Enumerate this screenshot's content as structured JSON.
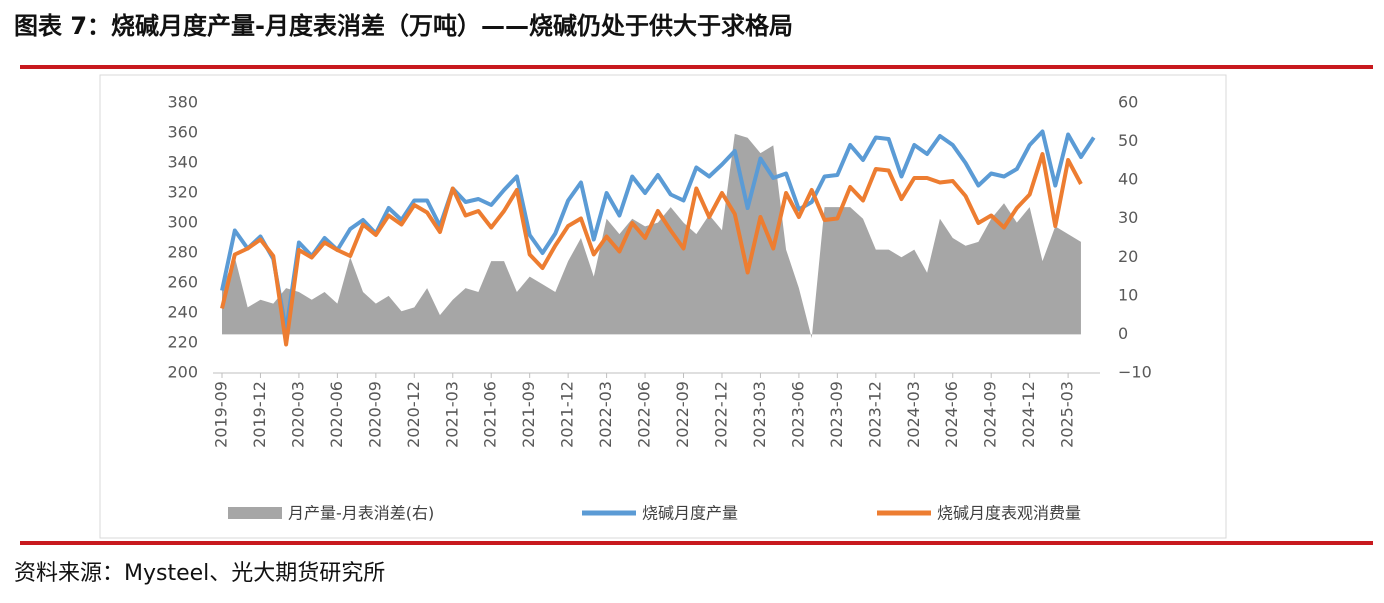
{
  "header": {
    "title": "图表 7：烧碱月度产量-月度表消差（万吨）——烧碱仍处于供大于求格局"
  },
  "chart_data": {
    "type": "combo",
    "categories": [
      "2019-09",
      null,
      null,
      "2019-12",
      null,
      null,
      "2020-03",
      null,
      null,
      "2020-06",
      null,
      null,
      "2020-09",
      null,
      null,
      "2020-12",
      null,
      null,
      "2021-03",
      null,
      null,
      "2021-06",
      null,
      null,
      "2021-09",
      null,
      null,
      "2021-12",
      null,
      null,
      "2022-03",
      null,
      null,
      "2022-06",
      null,
      null,
      "2022-09",
      null,
      null,
      "2022-12",
      null,
      null,
      "2023-03",
      null,
      null,
      "2023-06",
      null,
      null,
      "2023-09",
      null,
      null,
      "2023-12",
      null,
      null,
      "2024-03",
      null,
      null,
      "2024-06",
      null,
      null,
      "2024-09",
      null,
      null,
      "2024-12",
      null,
      null,
      "2025-03",
      null,
      null
    ],
    "series": [
      {
        "name": "月产量-月表消差(右)",
        "type": "area",
        "axis": "y2",
        "color": "#a6a6a6",
        "values": [
          12,
          20,
          7,
          9,
          8,
          12,
          11,
          9,
          11,
          8,
          20,
          11,
          8,
          10,
          6,
          7,
          12,
          5,
          9,
          12,
          11,
          19,
          19,
          11,
          15,
          13,
          11,
          19,
          25,
          15,
          30,
          26,
          30,
          28,
          29,
          33,
          29,
          26,
          31,
          27,
          52,
          51,
          47,
          49,
          22,
          12,
          -1,
          33,
          33,
          33,
          30,
          22,
          22,
          20,
          22,
          16,
          30,
          25,
          23,
          24,
          30,
          34,
          29,
          33,
          19,
          28,
          26,
          24,
          null
        ]
      },
      {
        "name": "烧碱月度产量",
        "type": "line",
        "color": "#5b9bd5",
        "values": [
          255,
          295,
          283,
          291,
          276,
          228,
          287,
          278,
          290,
          282,
          296,
          302,
          293,
          310,
          302,
          315,
          315,
          298,
          323,
          314,
          316,
          312,
          322,
          331,
          292,
          280,
          293,
          315,
          327,
          289,
          320,
          305,
          331,
          320,
          332,
          319,
          315,
          337,
          331,
          339,
          348,
          310,
          343,
          330,
          333,
          309,
          314,
          331,
          332,
          352,
          342,
          357,
          356,
          331,
          352,
          346,
          358,
          352,
          340,
          325,
          333,
          331,
          336,
          352,
          361,
          325,
          359,
          344,
          357
        ]
      },
      {
        "name": "烧碱月度表观消费量",
        "type": "line",
        "color": "#ed7d31",
        "values": [
          243,
          279,
          283,
          289,
          278,
          219,
          282,
          277,
          287,
          282,
          278,
          299,
          292,
          305,
          299,
          312,
          307,
          294,
          323,
          305,
          308,
          297,
          308,
          322,
          279,
          270,
          285,
          298,
          303,
          279,
          291,
          281,
          300,
          290,
          308,
          295,
          283,
          323,
          304,
          320,
          306,
          267,
          304,
          283,
          320,
          304,
          322,
          302,
          303,
          324,
          315,
          336,
          335,
          316,
          330,
          330,
          327,
          328,
          318,
          300,
          305,
          297,
          310,
          319,
          346,
          298,
          342,
          326,
          null
        ]
      }
    ],
    "ylim": [
      200,
      380
    ],
    "yticks": [
      200,
      220,
      240,
      260,
      280,
      300,
      320,
      340,
      360,
      380
    ],
    "y2lim": [
      -10,
      60
    ],
    "y2ticks": [
      {
        "value": -10,
        "label": "−10"
      },
      0,
      10,
      20,
      30,
      40,
      50,
      60
    ]
  },
  "footer": {
    "source": "资料来源：Mysteel、光大期货研究所"
  }
}
